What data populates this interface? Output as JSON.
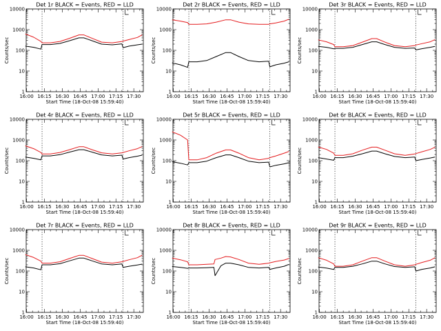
{
  "chart_data": [
    {
      "type": "line",
      "title": "Det 1r BLACK = Events, RED = LLD",
      "xlabel": "Start Time (18-Oct-08 15:59:40)",
      "ylabel": "Counts/sec",
      "x_ticks": [
        "16:00",
        "16:15",
        "16:30",
        "16:45",
        "17:00",
        "17:15",
        "17:30"
      ],
      "y_ticks": [
        "1",
        "10",
        "100",
        "1000",
        "10000"
      ],
      "y_scale": "log",
      "ylim": [
        1,
        10000
      ],
      "markers": [
        "16:13",
        "17:21"
      ],
      "series": [
        {
          "color": "#000000",
          "x": [
            "15:59",
            "16:06",
            "16:12",
            "16:13",
            "16:20",
            "16:28",
            "16:36",
            "16:44",
            "16:48",
            "16:55",
            "17:03",
            "17:12",
            "17:20",
            "17:21",
            "17:26",
            "17:33",
            "17:37"
          ],
          "values": [
            160,
            140,
            115,
            190,
            190,
            215,
            290,
            400,
            400,
            290,
            200,
            185,
            205,
            135,
            160,
            185,
            200
          ]
        },
        {
          "color": "#e41a1c",
          "x": [
            "15:59",
            "16:06",
            "16:12",
            "16:13",
            "16:20",
            "16:28",
            "16:36",
            "16:44",
            "16:48",
            "16:55",
            "17:03",
            "17:12",
            "17:20",
            "17:21",
            "17:26",
            "17:33",
            "17:37"
          ],
          "values": [
            620,
            430,
            270,
            230,
            230,
            270,
            380,
            560,
            560,
            380,
            250,
            230,
            270,
            280,
            330,
            420,
            560
          ]
        }
      ]
    },
    {
      "type": "line",
      "title": "Det 2r BLACK = Events, RED = LLD",
      "xlabel": "Start Time (18-Oct-08 15:59:40)",
      "ylabel": "Counts/sec",
      "x_ticks": [
        "16:00",
        "16:15",
        "16:30",
        "16:45",
        "17:00",
        "17:15",
        "17:30"
      ],
      "y_ticks": [
        "1",
        "10",
        "100",
        "1000",
        "10000"
      ],
      "y_scale": "log",
      "ylim": [
        1,
        10000
      ],
      "markers": [
        "16:13",
        "17:21"
      ],
      "series": [
        {
          "color": "#000000",
          "x": [
            "15:59",
            "16:06",
            "16:12",
            "16:13",
            "16:20",
            "16:28",
            "16:36",
            "16:44",
            "16:48",
            "16:55",
            "17:03",
            "17:12",
            "17:20",
            "17:21",
            "17:26",
            "17:33",
            "17:37"
          ],
          "values": [
            25,
            20,
            15,
            28,
            28,
            32,
            50,
            78,
            78,
            50,
            32,
            28,
            30,
            16,
            20,
            24,
            28
          ]
        },
        {
          "color": "#e41a1c",
          "x": [
            "15:59",
            "16:06",
            "16:12",
            "16:13",
            "16:20",
            "16:28",
            "16:36",
            "16:44",
            "16:48",
            "16:55",
            "17:03",
            "17:12",
            "17:20",
            "17:21",
            "17:26",
            "17:33",
            "17:37"
          ],
          "values": [
            3000,
            2600,
            2200,
            1800,
            1800,
            1900,
            2300,
            3000,
            3000,
            2300,
            1900,
            1800,
            1800,
            1900,
            2100,
            2600,
            3200
          ]
        }
      ]
    },
    {
      "type": "line",
      "title": "Det 3r BLACK = Events, RED = LLD",
      "xlabel": "Start Time (18-Oct-08 15:59:40)",
      "ylabel": "Counts/sec",
      "x_ticks": [
        "16:00",
        "16:15",
        "16:30",
        "16:45",
        "17:00",
        "17:15",
        "17:30"
      ],
      "y_ticks": [
        "1",
        "10",
        "100",
        "1000",
        "10000"
      ],
      "y_scale": "log",
      "ylim": [
        1,
        10000
      ],
      "markers": [
        "16:13",
        "17:21"
      ],
      "series": [
        {
          "color": "#000000",
          "x": [
            "15:59",
            "16:06",
            "16:12",
            "16:13",
            "16:20",
            "16:28",
            "16:36",
            "16:44",
            "16:48",
            "16:55",
            "17:03",
            "17:12",
            "17:20",
            "17:21",
            "17:26",
            "17:33",
            "17:37"
          ],
          "values": [
            155,
            140,
            118,
            125,
            125,
            140,
            190,
            260,
            260,
            190,
            140,
            125,
            130,
            105,
            120,
            140,
            155
          ]
        },
        {
          "color": "#e41a1c",
          "x": [
            "15:59",
            "16:06",
            "16:12",
            "16:13",
            "16:20",
            "16:28",
            "16:36",
            "16:44",
            "16:48",
            "16:55",
            "17:03",
            "17:12",
            "17:20",
            "17:21",
            "17:26",
            "17:33",
            "17:37"
          ],
          "values": [
            320,
            260,
            190,
            150,
            150,
            170,
            250,
            370,
            370,
            250,
            170,
            150,
            170,
            180,
            210,
            260,
            330
          ]
        }
      ]
    },
    {
      "type": "line",
      "title": "Det 4r BLACK = Events, RED = LLD",
      "xlabel": "Start Time (18-Oct-08 15:59:40)",
      "ylabel": "Counts/sec",
      "x_ticks": [
        "16:00",
        "16:15",
        "16:30",
        "16:45",
        "17:00",
        "17:15",
        "17:30"
      ],
      "y_ticks": [
        "1",
        "10",
        "100",
        "1000",
        "10000"
      ],
      "y_scale": "log",
      "ylim": [
        1,
        10000
      ],
      "markers": [
        "16:13",
        "17:21"
      ],
      "series": [
        {
          "color": "#000000",
          "x": [
            "15:59",
            "16:06",
            "16:12",
            "16:13",
            "16:20",
            "16:28",
            "16:36",
            "16:44",
            "16:48",
            "16:55",
            "17:03",
            "17:12",
            "17:20",
            "17:21",
            "17:26",
            "17:33",
            "17:37"
          ],
          "values": [
            150,
            130,
            110,
            170,
            170,
            195,
            260,
            340,
            340,
            260,
            190,
            170,
            185,
            120,
            140,
            165,
            185
          ]
        },
        {
          "color": "#e41a1c",
          "x": [
            "15:59",
            "16:06",
            "16:12",
            "16:13",
            "16:20",
            "16:28",
            "16:36",
            "16:44",
            "16:48",
            "16:55",
            "17:03",
            "17:12",
            "17:20",
            "17:21",
            "17:26",
            "17:33",
            "17:37"
          ],
          "values": [
            520,
            380,
            250,
            210,
            210,
            250,
            340,
            470,
            470,
            340,
            240,
            210,
            240,
            250,
            300,
            380,
            480
          ]
        }
      ]
    },
    {
      "type": "line",
      "title": "Det 5r BLACK = Events, RED = LLD",
      "xlabel": "Start Time (18-Oct-08 15:59:40)",
      "ylabel": "Counts/sec",
      "x_ticks": [
        "16:00",
        "16:15",
        "16:30",
        "16:45",
        "17:00",
        "17:15",
        "17:30"
      ],
      "y_ticks": [
        "1",
        "10",
        "100",
        "1000",
        "10000"
      ],
      "y_scale": "log",
      "ylim": [
        1,
        10000
      ],
      "markers": [
        "16:13",
        "17:21"
      ],
      "series": [
        {
          "color": "#000000",
          "x": [
            "15:59",
            "16:06",
            "16:12",
            "16:13",
            "16:20",
            "16:28",
            "16:36",
            "16:44",
            "16:48",
            "16:55",
            "17:03",
            "17:12",
            "17:20",
            "17:21",
            "17:26",
            "17:33",
            "17:37"
          ],
          "values": [
            90,
            75,
            62,
            80,
            80,
            95,
            140,
            190,
            190,
            140,
            95,
            80,
            85,
            50,
            60,
            70,
            80
          ]
        },
        {
          "color": "#e41a1c",
          "x": [
            "15:59",
            "16:06",
            "16:12",
            "16:13",
            "16:20",
            "16:28",
            "16:36",
            "16:44",
            "16:48",
            "16:55",
            "17:03",
            "17:12",
            "17:20",
            "17:21",
            "17:26",
            "17:33",
            "17:37"
          ],
          "values": [
            2500,
            1700,
            1000,
            110,
            110,
            140,
            230,
            330,
            330,
            230,
            140,
            110,
            130,
            140,
            170,
            230,
            280
          ]
        }
      ]
    },
    {
      "type": "line",
      "title": "Det 6r BLACK = Events, RED = LLD",
      "xlabel": "Start Time (18-Oct-08 15:59:40)",
      "ylabel": "Counts/sec",
      "x_ticks": [
        "16:00",
        "16:15",
        "16:30",
        "16:45",
        "17:00",
        "17:15",
        "17:30"
      ],
      "y_ticks": [
        "1",
        "10",
        "100",
        "1000",
        "10000"
      ],
      "y_scale": "log",
      "ylim": [
        1,
        10000
      ],
      "markers": [
        "16:13",
        "17:21"
      ],
      "series": [
        {
          "color": "#000000",
          "x": [
            "15:59",
            "16:06",
            "16:12",
            "16:13",
            "16:20",
            "16:28",
            "16:36",
            "16:44",
            "16:48",
            "16:55",
            "17:03",
            "17:12",
            "17:20",
            "17:21",
            "17:26",
            "17:33",
            "17:37"
          ],
          "values": [
            140,
            120,
            105,
            140,
            140,
            165,
            215,
            290,
            290,
            215,
            160,
            140,
            150,
            100,
            115,
            135,
            150
          ]
        },
        {
          "color": "#e41a1c",
          "x": [
            "15:59",
            "16:06",
            "16:12",
            "16:13",
            "16:20",
            "16:28",
            "16:36",
            "16:44",
            "16:48",
            "16:55",
            "17:03",
            "17:12",
            "17:20",
            "17:21",
            "17:26",
            "17:33",
            "17:37"
          ],
          "values": [
            460,
            350,
            230,
            180,
            180,
            215,
            320,
            450,
            450,
            320,
            215,
            180,
            210,
            220,
            270,
            350,
            450
          ]
        }
      ]
    },
    {
      "type": "line",
      "title": "Det 7r BLACK = Events, RED = LLD",
      "xlabel": "Start Time (18-Oct-08 15:59:40)",
      "ylabel": "Counts/sec",
      "x_ticks": [
        "16:00",
        "16:15",
        "16:30",
        "16:45",
        "17:00",
        "17:15",
        "17:30"
      ],
      "y_ticks": [
        "1",
        "10",
        "100",
        "1000",
        "10000"
      ],
      "y_scale": "log",
      "ylim": [
        1,
        10000
      ],
      "markers": [
        "16:13",
        "17:21"
      ],
      "series": [
        {
          "color": "#000000",
          "x": [
            "15:59",
            "16:06",
            "16:12",
            "16:13",
            "16:20",
            "16:28",
            "16:36",
            "16:44",
            "16:48",
            "16:55",
            "17:03",
            "17:12",
            "17:20",
            "17:21",
            "17:26",
            "17:33",
            "17:37"
          ],
          "values": [
            160,
            140,
            115,
            200,
            200,
            225,
            310,
            420,
            420,
            310,
            220,
            200,
            220,
            150,
            170,
            195,
            215
          ]
        },
        {
          "color": "#e41a1c",
          "x": [
            "15:59",
            "16:06",
            "16:12",
            "16:13",
            "16:20",
            "16:28",
            "16:36",
            "16:44",
            "16:48",
            "16:55",
            "17:03",
            "17:12",
            "17:20",
            "17:21",
            "17:26",
            "17:33",
            "17:37"
          ],
          "values": [
            620,
            450,
            300,
            240,
            240,
            280,
            400,
            570,
            570,
            400,
            270,
            240,
            280,
            290,
            350,
            440,
            580
          ]
        }
      ]
    },
    {
      "type": "line",
      "title": "Det 8r BLACK = Events, RED = LLD",
      "xlabel": "Start Time (18-Oct-08 15:59:40)",
      "ylabel": "Counts/sec",
      "x_ticks": [
        "16:00",
        "16:15",
        "16:30",
        "16:45",
        "17:00",
        "17:15",
        "17:30"
      ],
      "y_ticks": [
        "1",
        "10",
        "100",
        "1000",
        "10000"
      ],
      "y_scale": "log",
      "ylim": [
        1,
        10000
      ],
      "markers": [
        "16:13",
        "17:21"
      ],
      "series": [
        {
          "color": "#000000",
          "x": [
            "15:59",
            "16:06",
            "16:12",
            "16:13",
            "16:20",
            "16:28",
            "16:34",
            "16:35",
            "16:40",
            "16:44",
            "16:48",
            "16:55",
            "17:03",
            "17:12",
            "17:20",
            "17:21",
            "17:26",
            "17:33",
            "17:37"
          ],
          "values": [
            165,
            150,
            135,
            140,
            140,
            145,
            150,
            60,
            180,
            240,
            240,
            200,
            150,
            140,
            150,
            120,
            140,
            170,
            210
          ]
        },
        {
          "color": "#e41a1c",
          "x": [
            "15:59",
            "16:06",
            "16:12",
            "16:13",
            "16:20",
            "16:28",
            "16:34",
            "16:35",
            "16:40",
            "16:44",
            "16:48",
            "16:55",
            "17:03",
            "17:12",
            "17:20",
            "17:21",
            "17:26",
            "17:33",
            "17:37"
          ],
          "values": [
            420,
            350,
            280,
            200,
            200,
            210,
            220,
            360,
            420,
            500,
            480,
            360,
            240,
            210,
            240,
            250,
            290,
            340,
            400
          ]
        }
      ]
    },
    {
      "type": "line",
      "title": "Det 9r BLACK = Events, RED = LLD",
      "xlabel": "Start Time (18-Oct-08 15:59:40)",
      "ylabel": "Counts/sec",
      "x_ticks": [
        "16:00",
        "16:15",
        "16:30",
        "16:45",
        "17:00",
        "17:15",
        "17:30"
      ],
      "y_ticks": [
        "1",
        "10",
        "100",
        "1000",
        "10000"
      ],
      "y_scale": "log",
      "ylim": [
        1,
        10000
      ],
      "markers": [
        "16:13",
        "17:21"
      ],
      "series": [
        {
          "color": "#000000",
          "x": [
            "15:59",
            "16:06",
            "16:12",
            "16:13",
            "16:20",
            "16:28",
            "16:36",
            "16:44",
            "16:48",
            "16:55",
            "17:03",
            "17:12",
            "17:20",
            "17:21",
            "17:26",
            "17:33",
            "17:37"
          ],
          "values": [
            155,
            138,
            118,
            150,
            150,
            170,
            220,
            300,
            300,
            220,
            165,
            150,
            160,
            100,
            120,
            140,
            160
          ]
        },
        {
          "color": "#e41a1c",
          "x": [
            "15:59",
            "16:06",
            "16:12",
            "16:13",
            "16:20",
            "16:28",
            "16:36",
            "16:44",
            "16:48",
            "16:55",
            "17:03",
            "17:12",
            "17:20",
            "17:21",
            "17:26",
            "17:33",
            "17:37"
          ],
          "values": [
            440,
            330,
            220,
            170,
            170,
            200,
            300,
            440,
            440,
            300,
            200,
            170,
            200,
            210,
            260,
            330,
            440
          ]
        }
      ]
    }
  ]
}
